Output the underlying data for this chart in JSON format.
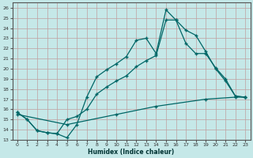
{
  "xlabel": "Humidex (Indice chaleur)",
  "ylabel": "",
  "bg_color": "#c5e8e8",
  "grid_color": "#b0d0d0",
  "line_color": "#006666",
  "xlim": [
    -0.5,
    23.5
  ],
  "ylim": [
    13,
    26.5
  ],
  "xticks": [
    0,
    1,
    2,
    3,
    4,
    5,
    6,
    7,
    8,
    9,
    10,
    11,
    12,
    13,
    14,
    15,
    16,
    17,
    18,
    19,
    20,
    21,
    22,
    23
  ],
  "yticks": [
    13,
    14,
    15,
    16,
    17,
    18,
    19,
    20,
    21,
    22,
    23,
    24,
    25,
    26
  ],
  "line1_x": [
    0,
    1,
    2,
    3,
    4,
    5,
    6,
    7,
    8,
    9,
    10,
    11,
    12,
    13,
    14,
    15,
    16,
    17,
    18,
    19,
    20,
    21,
    22,
    23
  ],
  "line1_y": [
    15.7,
    15.0,
    13.9,
    13.7,
    13.6,
    13.2,
    14.5,
    17.2,
    19.2,
    19.9,
    20.5,
    21.2,
    22.8,
    23.0,
    21.5,
    25.8,
    24.8,
    23.8,
    23.3,
    21.7,
    20.0,
    18.8,
    17.3,
    17.2
  ],
  "line2_x": [
    0,
    1,
    2,
    3,
    4,
    5,
    6,
    7,
    8,
    9,
    10,
    11,
    12,
    13,
    14,
    15,
    16,
    17,
    18,
    19,
    20,
    21,
    22,
    23
  ],
  "line2_y": [
    15.7,
    15.0,
    13.9,
    13.7,
    13.6,
    15.0,
    15.3,
    16.0,
    17.5,
    18.2,
    18.8,
    19.3,
    20.2,
    20.8,
    21.3,
    24.8,
    24.8,
    22.5,
    21.5,
    21.5,
    20.1,
    19.0,
    17.3,
    17.2
  ],
  "line3_x": [
    0,
    5,
    10,
    14,
    19,
    22,
    23
  ],
  "line3_y": [
    15.5,
    14.5,
    15.5,
    16.3,
    17.0,
    17.2,
    17.2
  ]
}
